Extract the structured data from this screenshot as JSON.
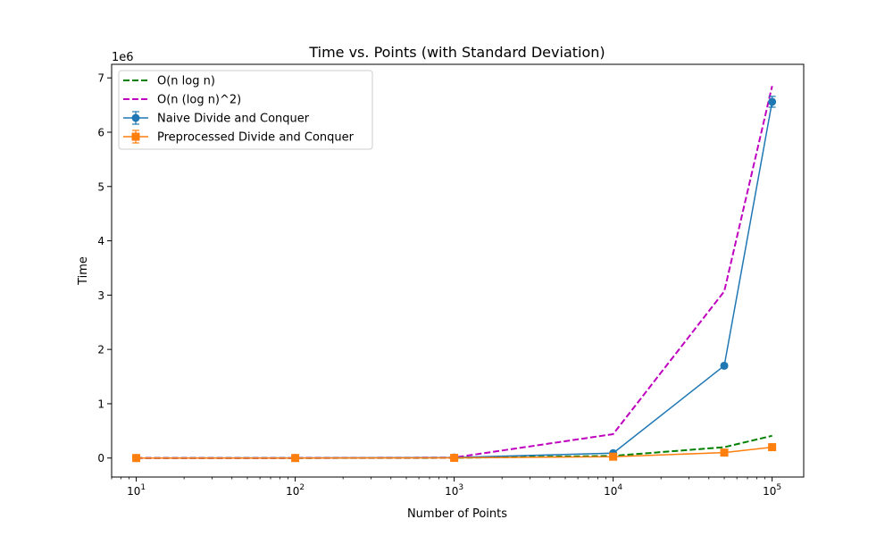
{
  "chart_data": {
    "type": "line",
    "title": "Time vs. Points (with Standard Deviation)",
    "xlabel": "Number of Points",
    "ylabel": "Time",
    "y_offset_label": "1e6",
    "x_scale": "log",
    "xlim": [
      7,
      158000
    ],
    "ylim": [
      -350000,
      7250000
    ],
    "x_ticks": [
      {
        "value": 10,
        "base": "10",
        "exp": "1"
      },
      {
        "value": 100,
        "base": "10",
        "exp": "2"
      },
      {
        "value": 1000,
        "base": "10",
        "exp": "3"
      },
      {
        "value": 10000,
        "base": "10",
        "exp": "4"
      },
      {
        "value": 100000,
        "base": "10",
        "exp": "5"
      }
    ],
    "y_ticks": [
      {
        "value": 0,
        "label": "0"
      },
      {
        "value": 1000000,
        "label": "1"
      },
      {
        "value": 2000000,
        "label": "2"
      },
      {
        "value": 3000000,
        "label": "3"
      },
      {
        "value": 4000000,
        "label": "4"
      },
      {
        "value": 5000000,
        "label": "5"
      },
      {
        "value": 6000000,
        "label": "6"
      },
      {
        "value": 7000000,
        "label": "7"
      }
    ],
    "grid": false,
    "legend_position": "top-left",
    "series": [
      {
        "name": "O(n log n)",
        "style": "dashed",
        "color": "#008000",
        "marker": "none",
        "x": [
          10,
          100,
          1000,
          10000,
          50000,
          100000
        ],
        "y": [
          10,
          200,
          3000,
          40000,
          200000,
          410000
        ]
      },
      {
        "name": "O(n (log n)^2)",
        "style": "dashed",
        "color": "#bf00bf",
        "marker": "none",
        "x": [
          10,
          100,
          1000,
          10000,
          50000,
          100000
        ],
        "y": [
          11,
          400,
          9000,
          440000,
          3070000,
          6850000
        ]
      },
      {
        "name": "Naive Divide and Conquer",
        "style": "solid",
        "color": "#1f77b4",
        "marker": "circle",
        "x": [
          10,
          100,
          1000,
          10000,
          50000,
          100000
        ],
        "y": [
          100,
          1000,
          10000,
          90000,
          1700000,
          6560000
        ],
        "err": [
          0,
          0,
          0,
          0,
          30000,
          100000
        ]
      },
      {
        "name": "Preprocessed Divide and Conquer",
        "style": "solid",
        "color": "#ff7f0e",
        "marker": "square",
        "x": [
          10,
          100,
          1000,
          10000,
          50000,
          100000
        ],
        "y": [
          50,
          300,
          3000,
          25000,
          100000,
          200000
        ],
        "err": [
          0,
          0,
          0,
          0,
          5000,
          10000
        ]
      }
    ]
  }
}
